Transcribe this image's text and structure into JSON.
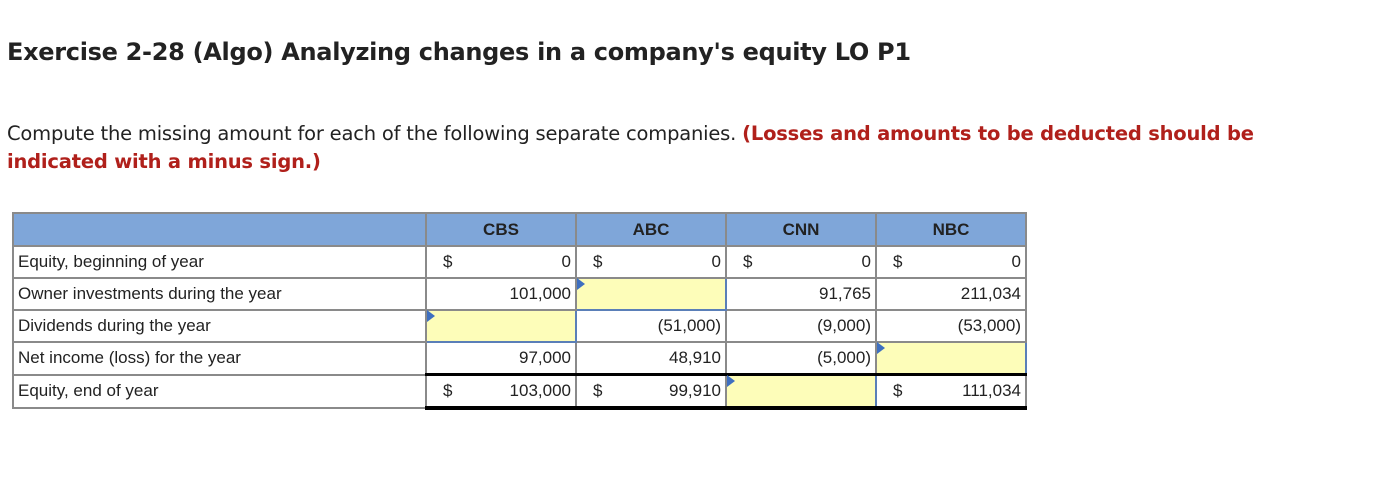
{
  "title": "Exercise 2-28 (Algo) Analyzing changes in a company's equity LO P1",
  "instructions": {
    "text": "Compute the missing amount for each of the following separate companies.",
    "emphasis": "(Losses and amounts to be deducted should be indicated with a minus sign.)"
  },
  "table": {
    "columns": [
      "CBS",
      "ABC",
      "CNN",
      "NBC"
    ],
    "rows": [
      {
        "label": "Equity, beginning of year",
        "cells": [
          {
            "dollar": "$",
            "value": "0"
          },
          {
            "dollar": "$",
            "value": "0"
          },
          {
            "dollar": "$",
            "value": "0"
          },
          {
            "dollar": "$",
            "value": "0"
          }
        ]
      },
      {
        "label": "Owner investments during the year",
        "cells": [
          {
            "value": "101,000"
          },
          {
            "input": true,
            "value": ""
          },
          {
            "value": "91,765"
          },
          {
            "value": "211,034"
          }
        ]
      },
      {
        "label": "Dividends during the year",
        "cells": [
          {
            "input": true,
            "value": ""
          },
          {
            "value": "(51,000)"
          },
          {
            "value": "(9,000)"
          },
          {
            "value": "(53,000)"
          }
        ]
      },
      {
        "label": "Net income (loss) for the year",
        "cells": [
          {
            "value": "97,000"
          },
          {
            "value": "48,910"
          },
          {
            "value": "(5,000)"
          },
          {
            "input": true,
            "value": ""
          }
        ]
      },
      {
        "label": "Equity, end of year",
        "cells": [
          {
            "dollar": "$",
            "value": "103,000"
          },
          {
            "dollar": "$",
            "value": "99,910"
          },
          {
            "input": true,
            "value": ""
          },
          {
            "dollar": "$",
            "value": "111,034"
          }
        ]
      }
    ]
  },
  "colors": {
    "header": "#7fa6d9",
    "input": "#fdfdb9",
    "emphasis": "#b0201b"
  }
}
